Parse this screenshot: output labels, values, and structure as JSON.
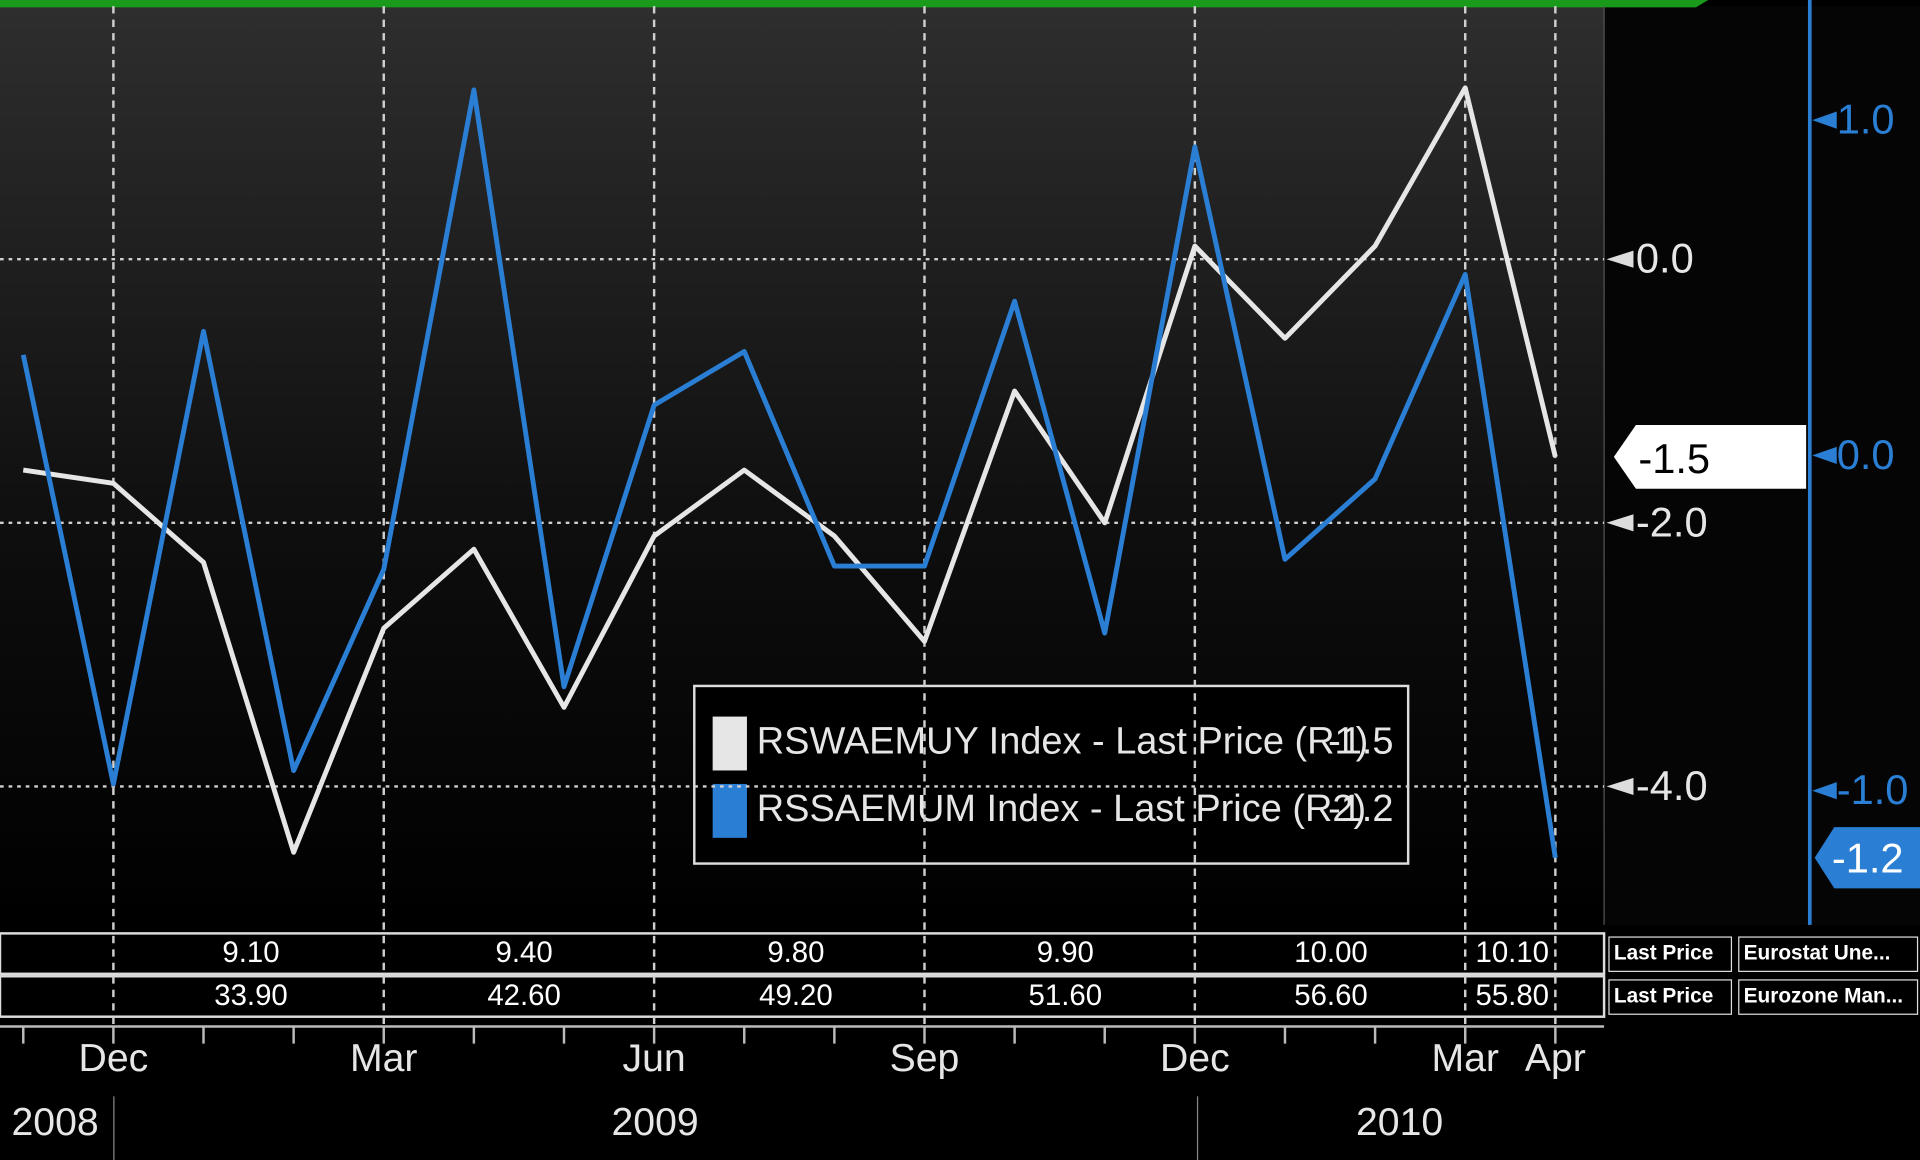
{
  "chart_data": {
    "type": "line",
    "categories": [
      null,
      "Dec",
      null,
      null,
      "Mar",
      null,
      null,
      "Jun",
      null,
      null,
      "Sep",
      null,
      null,
      "Dec",
      null,
      null,
      "Mar",
      "Apr"
    ],
    "year_labels": [
      "2008",
      "2009",
      "2010"
    ],
    "series": [
      {
        "name": "RSWAEMUY Index - Last Price (R1)",
        "color": "#e6e6e6",
        "axis": "y",
        "values": [
          -1.6,
          -1.7,
          -2.3,
          -4.5,
          -2.8,
          -2.2,
          -3.4,
          -2.1,
          -1.6,
          -2.1,
          -2.9,
          -1.0,
          -2.0,
          0.1,
          -0.6,
          0.1,
          1.3,
          -1.5
        ]
      },
      {
        "name": "RSSAEMUM Index - Last Price (R2)",
        "color": "#2a7fd4",
        "axis": "y2",
        "values": [
          0.3,
          -0.98,
          0.37,
          -0.94,
          -0.34,
          1.09,
          -0.69,
          0.15,
          0.31,
          -0.33,
          -0.33,
          0.46,
          -0.53,
          0.92,
          -0.31,
          -0.07,
          0.54,
          -1.2
        ]
      }
    ],
    "ylim": [
      -5.05,
      1.92
    ],
    "yticks": [
      {
        "value": 0,
        "label": "0.0"
      },
      {
        "value": -2,
        "label": "-2.0"
      },
      {
        "value": -4,
        "label": "-4.0"
      }
    ],
    "y2lim": [
      -1.4,
      1.34
    ],
    "y2ticks": [
      {
        "value": 1,
        "label": "1.0"
      },
      {
        "value": 0,
        "label": "0.0"
      },
      {
        "value": -1,
        "label": "-1.0"
      }
    ],
    "grid": true
  },
  "data_rows": [
    {
      "values": [
        "9.10",
        "9.40",
        "9.80",
        "9.90",
        "10.00",
        "10.10"
      ],
      "labels": [
        "Last Price",
        "Eurostat Une..."
      ]
    },
    {
      "values": [
        "33.90",
        "42.60",
        "49.20",
        "51.60",
        "56.60",
        "55.80"
      ],
      "labels": [
        "Last Price",
        "Eurozone Man..."
      ]
    }
  ]
}
